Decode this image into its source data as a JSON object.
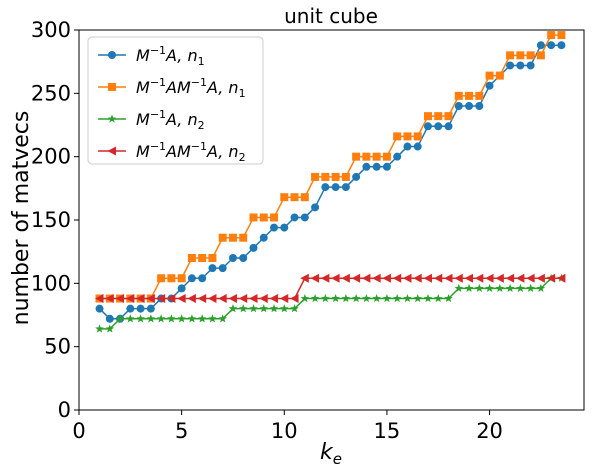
{
  "chart_data": {
    "type": "line",
    "title": "unit cube",
    "xlabel_base": "k",
    "xlabel_sub": "e",
    "ylabel": "number of matvecs",
    "xlim": [
      0.0,
      24.6
    ],
    "ylim": [
      0,
      300
    ],
    "xticks": [
      0,
      5,
      10,
      15,
      20
    ],
    "yticks": [
      0,
      50,
      100,
      150,
      200,
      250,
      300
    ],
    "grid": false,
    "legend_position": "top-left",
    "x": [
      1.0,
      1.5,
      2.0,
      2.5,
      3.0,
      3.5,
      4.0,
      4.5,
      5.0,
      5.5,
      6.0,
      6.5,
      7.0,
      7.5,
      8.0,
      8.5,
      9.0,
      9.5,
      10.0,
      10.5,
      11.0,
      11.5,
      12.0,
      12.5,
      13.0,
      13.5,
      14.0,
      14.5,
      15.0,
      15.5,
      16.0,
      16.5,
      17.0,
      17.5,
      18.0,
      18.5,
      19.0,
      19.5,
      20.0,
      20.5,
      21.0,
      21.5,
      22.0,
      22.5,
      23.0,
      23.5
    ],
    "series": [
      {
        "label_main": "M",
        "label_sup": "−1",
        "label_rest": "A, ",
        "label_n": "n",
        "label_nsub": "1",
        "color": "#1f77b4",
        "marker": "circle",
        "values": [
          80,
          72,
          72,
          80,
          80,
          80,
          88,
          88,
          96,
          104,
          104,
          112,
          112,
          120,
          120,
          128,
          136,
          144,
          144,
          152,
          152,
          160,
          176,
          176,
          176,
          184,
          192,
          192,
          192,
          200,
          208,
          208,
          224,
          224,
          224,
          240,
          240,
          240,
          256,
          264,
          272,
          272,
          272,
          288,
          288,
          288
        ]
      },
      {
        "label_main": "M",
        "label_sup": "−1",
        "label_rest": "AM",
        "label_sup2": "−1",
        "label_rest2": "A, ",
        "label_n": "n",
        "label_nsub": "1",
        "color": "#ff7f0e",
        "marker": "square",
        "values": [
          88,
          88,
          88,
          88,
          88,
          88,
          104,
          104,
          104,
          120,
          120,
          120,
          136,
          136,
          136,
          152,
          152,
          152,
          168,
          168,
          168,
          184,
          184,
          184,
          184,
          200,
          200,
          200,
          200,
          216,
          216,
          216,
          232,
          232,
          232,
          248,
          248,
          248,
          264,
          264,
          280,
          280,
          280,
          280,
          296,
          296
        ]
      },
      {
        "label_main": "M",
        "label_sup": "−1",
        "label_rest": "A, ",
        "label_n": "n",
        "label_nsub": "2",
        "color": "#2ca02c",
        "marker": "star",
        "values": [
          64,
          64,
          72,
          72,
          72,
          72,
          72,
          72,
          72,
          72,
          72,
          72,
          72,
          80,
          80,
          80,
          80,
          80,
          80,
          80,
          88,
          88,
          88,
          88,
          88,
          88,
          88,
          88,
          88,
          88,
          88,
          88,
          88,
          88,
          88,
          96,
          96,
          96,
          96,
          96,
          96,
          96,
          96,
          96,
          104,
          104
        ]
      },
      {
        "label_main": "M",
        "label_sup": "−1",
        "label_rest": "AM",
        "label_sup2": "−1",
        "label_rest2": "A, ",
        "label_n": "n",
        "label_nsub": "2",
        "color": "#d62728",
        "marker": "triangle-left",
        "values": [
          88,
          88,
          88,
          88,
          88,
          88,
          88,
          88,
          88,
          88,
          88,
          88,
          88,
          88,
          88,
          88,
          88,
          88,
          88,
          88,
          104,
          104,
          104,
          104,
          104,
          104,
          104,
          104,
          104,
          104,
          104,
          104,
          104,
          104,
          104,
          104,
          104,
          104,
          104,
          104,
          104,
          104,
          104,
          104,
          104,
          104
        ]
      }
    ]
  }
}
